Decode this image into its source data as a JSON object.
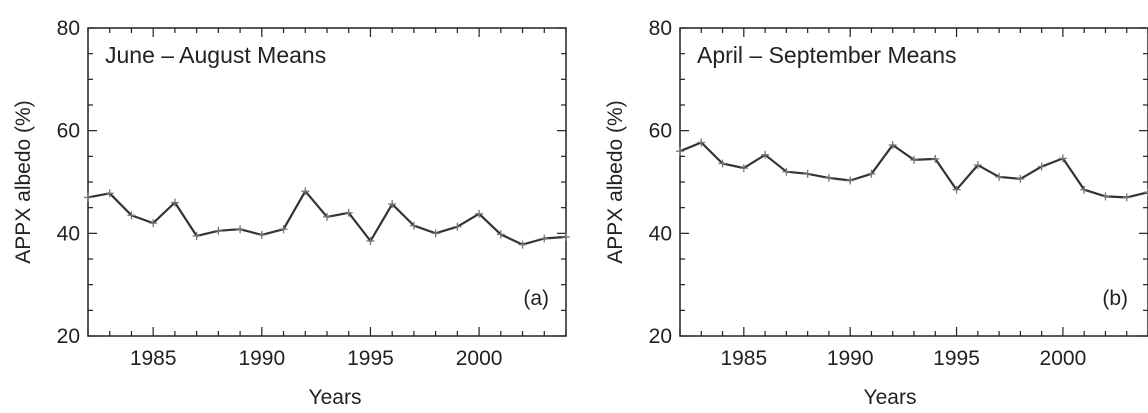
{
  "chart_data": [
    {
      "type": "line",
      "panel_label": "(a)",
      "title": "June – August Means",
      "xlabel": "Years",
      "ylabel": "APPX albedo (%)",
      "xlim": [
        1982,
        2004
      ],
      "ylim": [
        20,
        80
      ],
      "xticks": [
        1985,
        1990,
        1995,
        2000
      ],
      "yticks": [
        20,
        40,
        60,
        80
      ],
      "grid": false,
      "marker": "plus",
      "color": "#333333",
      "x": [
        1982,
        1983,
        1984,
        1985,
        1986,
        1987,
        1988,
        1989,
        1990,
        1991,
        1992,
        1993,
        1994,
        1995,
        1996,
        1997,
        1998,
        1999,
        2000,
        2001,
        2002,
        2003,
        2004
      ],
      "y": [
        47.0,
        47.8,
        43.5,
        42.0,
        46.0,
        39.5,
        40.5,
        40.8,
        39.7,
        40.8,
        48.2,
        43.2,
        44.0,
        38.5,
        45.7,
        41.5,
        40.0,
        41.3,
        43.8,
        39.8,
        37.8,
        39.0,
        39.3
      ]
    },
    {
      "type": "line",
      "panel_label": "(b)",
      "title": "April – September Means",
      "xlabel": "Years",
      "ylabel": "APPX albedo (%)",
      "xlim": [
        1982,
        2004
      ],
      "ylim": [
        20,
        80
      ],
      "xticks": [
        1985,
        1990,
        1995,
        2000
      ],
      "yticks": [
        20,
        40,
        60,
        80
      ],
      "grid": false,
      "marker": "plus",
      "color": "#333333",
      "x": [
        1982,
        1983,
        1984,
        1985,
        1986,
        1987,
        1988,
        1989,
        1990,
        1991,
        1992,
        1993,
        1994,
        1995,
        1996,
        1997,
        1998,
        1999,
        2000,
        2001,
        2002,
        2003,
        2004
      ],
      "y": [
        56.0,
        57.7,
        53.6,
        52.7,
        55.3,
        52.0,
        51.6,
        50.8,
        50.3,
        51.6,
        57.2,
        54.3,
        54.5,
        48.5,
        53.3,
        51.0,
        50.6,
        53.0,
        54.6,
        48.5,
        47.2,
        47.0,
        48.0
      ]
    }
  ]
}
